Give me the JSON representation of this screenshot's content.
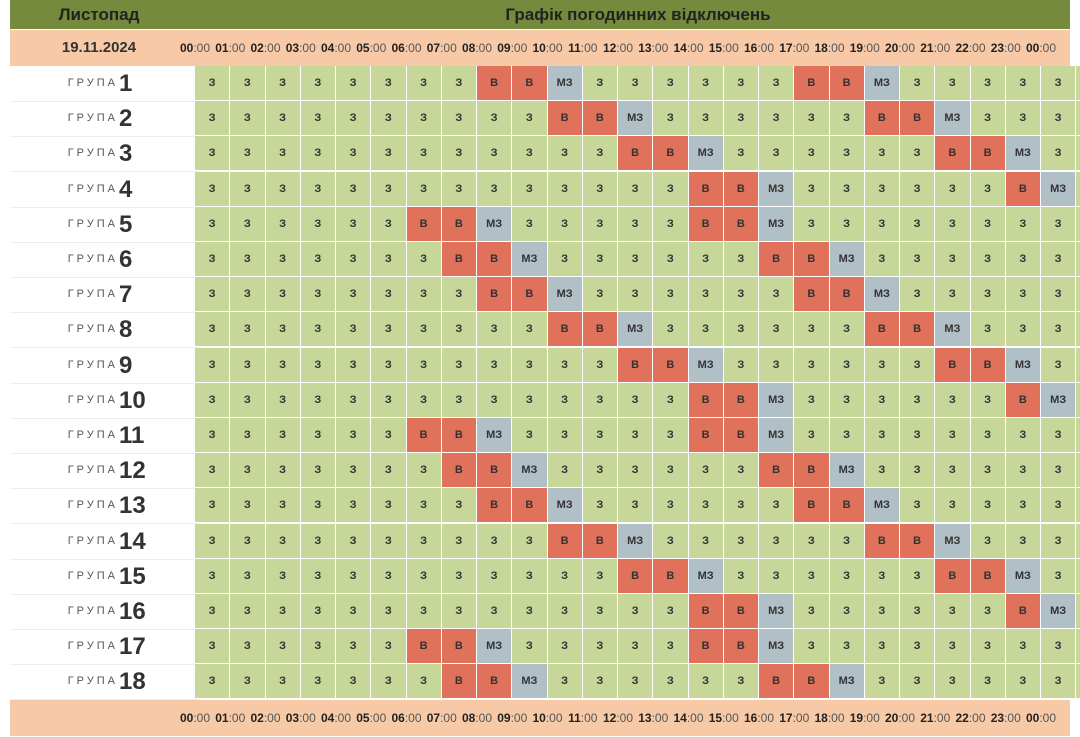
{
  "header": {
    "month": "Листопад",
    "title": "Графік погодинних відключень",
    "date": "19.11.2024"
  },
  "hours": [
    {
      "h": "00",
      "m": ":00"
    },
    {
      "h": "01",
      "m": ":00"
    },
    {
      "h": "02",
      "m": ":00"
    },
    {
      "h": "03",
      "m": ":00"
    },
    {
      "h": "04",
      "m": ":00"
    },
    {
      "h": "05",
      "m": ":00"
    },
    {
      "h": "06",
      "m": ":00"
    },
    {
      "h": "07",
      "m": ":00"
    },
    {
      "h": "08",
      "m": ":00"
    },
    {
      "h": "09",
      "m": ":00"
    },
    {
      "h": "10",
      "m": ":00"
    },
    {
      "h": "11",
      "m": ":00"
    },
    {
      "h": "12",
      "m": ":00"
    },
    {
      "h": "13",
      "m": ":00"
    },
    {
      "h": "14",
      "m": ":00"
    },
    {
      "h": "15",
      "m": ":00"
    },
    {
      "h": "16",
      "m": ":00"
    },
    {
      "h": "17",
      "m": ":00"
    },
    {
      "h": "18",
      "m": ":00"
    },
    {
      "h": "19",
      "m": ":00"
    },
    {
      "h": "20",
      "m": ":00"
    },
    {
      "h": "21",
      "m": ":00"
    },
    {
      "h": "22",
      "m": ":00"
    },
    {
      "h": "23",
      "m": ":00"
    },
    {
      "h": "00",
      "m": ":00"
    }
  ],
  "group_word": "ГРУПА",
  "colors": {
    "З": "#c7d79a",
    "В": "#e0725c",
    "МЗ": "#b1c0c6",
    "title_bar": "#768a3d",
    "band": "#f7c9a6"
  },
  "groups": [
    {
      "num": "1",
      "cells": [
        "З",
        "З",
        "З",
        "З",
        "З",
        "З",
        "З",
        "З",
        "В",
        "В",
        "МЗ",
        "З",
        "З",
        "З",
        "З",
        "З",
        "З",
        "В",
        "В",
        "МЗ",
        "З",
        "З",
        "З",
        "З"
      ]
    },
    {
      "num": "2",
      "cells": [
        "З",
        "З",
        "З",
        "З",
        "З",
        "З",
        "З",
        "З",
        "З",
        "З",
        "В",
        "В",
        "МЗ",
        "З",
        "З",
        "З",
        "З",
        "З",
        "З",
        "В",
        "В",
        "МЗ",
        "З",
        "З"
      ]
    },
    {
      "num": "3",
      "cells": [
        "З",
        "З",
        "З",
        "З",
        "З",
        "З",
        "З",
        "З",
        "З",
        "З",
        "З",
        "З",
        "В",
        "В",
        "МЗ",
        "З",
        "З",
        "З",
        "З",
        "З",
        "З",
        "В",
        "В",
        "МЗ"
      ]
    },
    {
      "num": "4",
      "cells": [
        "З",
        "З",
        "З",
        "З",
        "З",
        "З",
        "З",
        "З",
        "З",
        "З",
        "З",
        "З",
        "З",
        "З",
        "В",
        "В",
        "МЗ",
        "З",
        "З",
        "З",
        "З",
        "З",
        "З",
        "В"
      ]
    },
    {
      "num": "5",
      "cells": [
        "З",
        "З",
        "З",
        "З",
        "З",
        "З",
        "В",
        "В",
        "МЗ",
        "З",
        "З",
        "З",
        "З",
        "З",
        "В",
        "В",
        "МЗ",
        "З",
        "З",
        "З",
        "З",
        "З",
        "З",
        "З"
      ]
    },
    {
      "num": "6",
      "cells": [
        "З",
        "З",
        "З",
        "З",
        "З",
        "З",
        "З",
        "В",
        "В",
        "МЗ",
        "З",
        "З",
        "З",
        "З",
        "З",
        "З",
        "В",
        "В",
        "МЗ",
        "З",
        "З",
        "З",
        "З",
        "З"
      ]
    },
    {
      "num": "7",
      "cells": [
        "З",
        "З",
        "З",
        "З",
        "З",
        "З",
        "З",
        "З",
        "В",
        "В",
        "МЗ",
        "З",
        "З",
        "З",
        "З",
        "З",
        "З",
        "В",
        "В",
        "МЗ",
        "З",
        "З",
        "З",
        "З"
      ]
    },
    {
      "num": "8",
      "cells": [
        "З",
        "З",
        "З",
        "З",
        "З",
        "З",
        "З",
        "З",
        "З",
        "З",
        "В",
        "В",
        "МЗ",
        "З",
        "З",
        "З",
        "З",
        "З",
        "З",
        "В",
        "В",
        "МЗ",
        "З",
        "З"
      ]
    },
    {
      "num": "9",
      "cells": [
        "З",
        "З",
        "З",
        "З",
        "З",
        "З",
        "З",
        "З",
        "З",
        "З",
        "З",
        "З",
        "В",
        "В",
        "МЗ",
        "З",
        "З",
        "З",
        "З",
        "З",
        "З",
        "В",
        "В",
        "МЗ"
      ]
    },
    {
      "num": "10",
      "cells": [
        "З",
        "З",
        "З",
        "З",
        "З",
        "З",
        "З",
        "З",
        "З",
        "З",
        "З",
        "З",
        "З",
        "З",
        "В",
        "В",
        "МЗ",
        "З",
        "З",
        "З",
        "З",
        "З",
        "З",
        "В"
      ]
    },
    {
      "num": "11",
      "cells": [
        "З",
        "З",
        "З",
        "З",
        "З",
        "З",
        "В",
        "В",
        "МЗ",
        "З",
        "З",
        "З",
        "З",
        "З",
        "В",
        "В",
        "МЗ",
        "З",
        "З",
        "З",
        "З",
        "З",
        "З",
        "З"
      ]
    },
    {
      "num": "12",
      "cells": [
        "З",
        "З",
        "З",
        "З",
        "З",
        "З",
        "З",
        "В",
        "В",
        "МЗ",
        "З",
        "З",
        "З",
        "З",
        "З",
        "З",
        "В",
        "В",
        "МЗ",
        "З",
        "З",
        "З",
        "З",
        "З"
      ]
    },
    {
      "num": "13",
      "cells": [
        "З",
        "З",
        "З",
        "З",
        "З",
        "З",
        "З",
        "З",
        "В",
        "В",
        "МЗ",
        "З",
        "З",
        "З",
        "З",
        "З",
        "З",
        "В",
        "В",
        "МЗ",
        "З",
        "З",
        "З",
        "З"
      ]
    },
    {
      "num": "14",
      "cells": [
        "З",
        "З",
        "З",
        "З",
        "З",
        "З",
        "З",
        "З",
        "З",
        "З",
        "В",
        "В",
        "МЗ",
        "З",
        "З",
        "З",
        "З",
        "З",
        "З",
        "В",
        "В",
        "МЗ",
        "З",
        "З"
      ]
    },
    {
      "num": "15",
      "cells": [
        "З",
        "З",
        "З",
        "З",
        "З",
        "З",
        "З",
        "З",
        "З",
        "З",
        "З",
        "З",
        "В",
        "В",
        "МЗ",
        "З",
        "З",
        "З",
        "З",
        "З",
        "З",
        "В",
        "В",
        "МЗ"
      ]
    },
    {
      "num": "16",
      "cells": [
        "З",
        "З",
        "З",
        "З",
        "З",
        "З",
        "З",
        "З",
        "З",
        "З",
        "З",
        "З",
        "З",
        "З",
        "В",
        "В",
        "МЗ",
        "З",
        "З",
        "З",
        "З",
        "З",
        "З",
        "В"
      ]
    },
    {
      "num": "17",
      "cells": [
        "З",
        "З",
        "З",
        "З",
        "З",
        "З",
        "В",
        "В",
        "МЗ",
        "З",
        "З",
        "З",
        "З",
        "З",
        "В",
        "В",
        "МЗ",
        "З",
        "З",
        "З",
        "З",
        "З",
        "З",
        "З"
      ]
    },
    {
      "num": "18",
      "cells": [
        "З",
        "З",
        "З",
        "З",
        "З",
        "З",
        "З",
        "В",
        "В",
        "МЗ",
        "З",
        "З",
        "З",
        "З",
        "З",
        "З",
        "В",
        "В",
        "МЗ",
        "З",
        "З",
        "З",
        "З",
        "З"
      ]
    }
  ],
  "last_column": [
    "З",
    "З",
    "З",
    "МЗ",
    "З",
    "З",
    "З",
    "З",
    "З",
    "МЗ",
    "З",
    "З",
    "З",
    "З",
    "З",
    "МЗ",
    "З",
    "З"
  ]
}
